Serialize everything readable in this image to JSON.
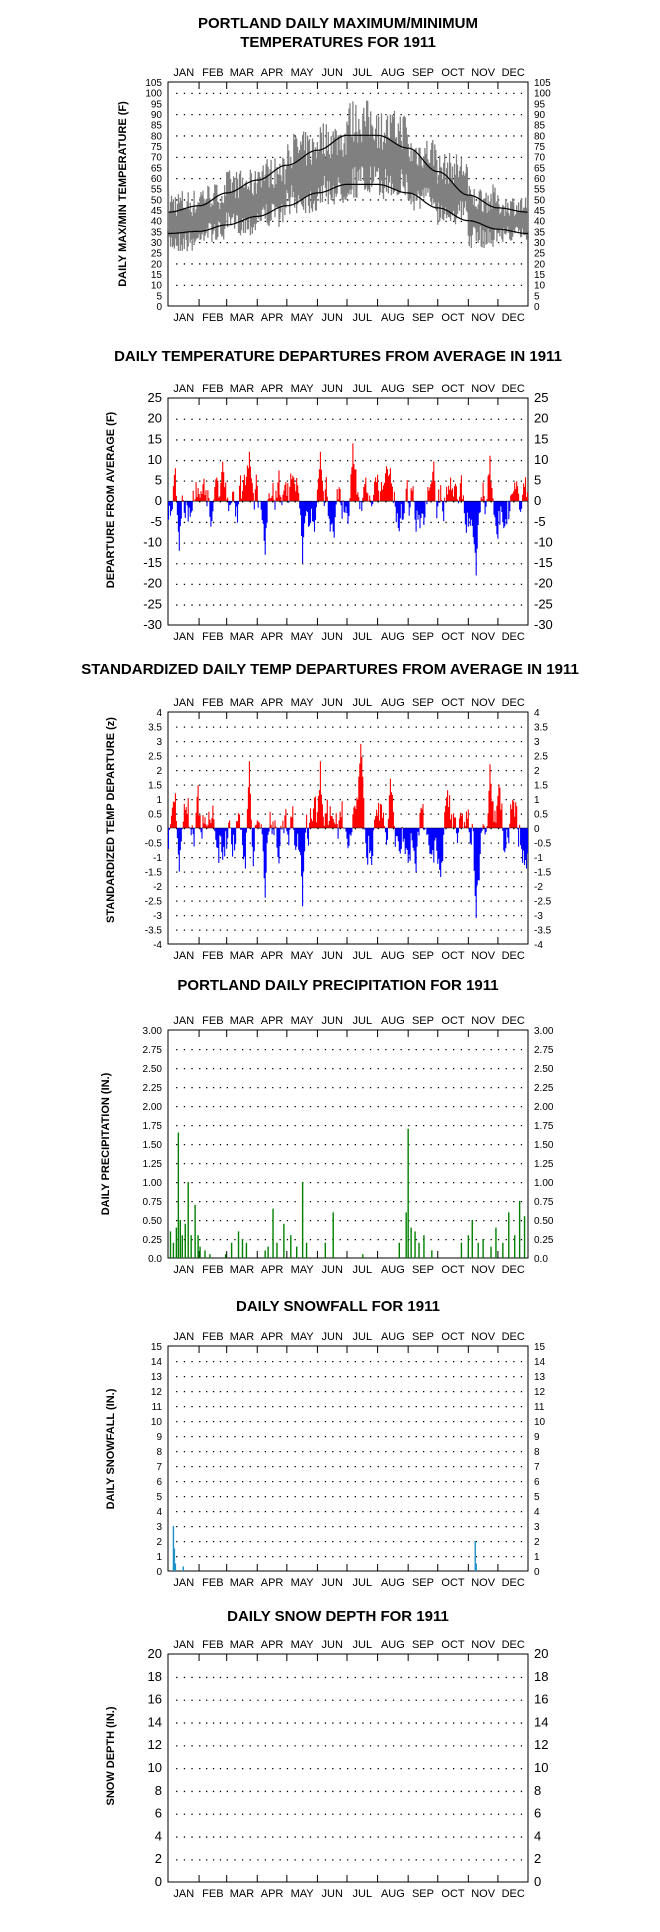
{
  "months": [
    "JAN",
    "FEB",
    "MAR",
    "APR",
    "MAY",
    "JUN",
    "JUL",
    "AUG",
    "SEP",
    "OCT",
    "NOV",
    "DEC"
  ],
  "chart_data": [
    {
      "id": "temps",
      "type": "line",
      "title": [
        "PORTLAND DAILY MAXIMUM/MINIMUM",
        "TEMPERATURES FOR 1911"
      ],
      "ylabel": "DAILY MAX/MIN TEMPERATURE (F)",
      "ylim": [
        0,
        105
      ],
      "yticks": [
        0,
        5,
        10,
        15,
        20,
        25,
        30,
        35,
        40,
        45,
        50,
        55,
        60,
        65,
        70,
        75,
        80,
        85,
        90,
        95,
        100,
        105
      ],
      "grid": true,
      "colors": {
        "observed": "#808080",
        "normals": "#000000"
      },
      "observed_monthly_range": {
        "months": [
          "JAN",
          "FEB",
          "MAR",
          "APR",
          "MAY",
          "JUN",
          "JUL",
          "AUG",
          "SEP",
          "OCT",
          "NOV",
          "DEC"
        ],
        "max": [
          55,
          58,
          64,
          70,
          82,
          87,
          97,
          92,
          80,
          72,
          57,
          52
        ],
        "min": [
          25,
          30,
          33,
          37,
          43,
          47,
          50,
          50,
          44,
          38,
          27,
          30
        ]
      },
      "normal_high": {
        "x": [
          1,
          32,
          60,
          91,
          121,
          152,
          182,
          213,
          244,
          274,
          305,
          335,
          365
        ],
        "y": [
          44,
          47,
          53,
          59,
          66,
          73,
          80,
          80,
          74,
          63,
          52,
          46,
          44
        ]
      },
      "normal_low": {
        "x": [
          1,
          32,
          60,
          91,
          121,
          152,
          182,
          213,
          244,
          274,
          305,
          335,
          365
        ],
        "y": [
          34,
          35,
          38,
          42,
          47,
          53,
          57,
          57,
          53,
          46,
          40,
          36,
          34
        ]
      }
    },
    {
      "id": "departures",
      "type": "bar",
      "title": [
        "DAILY TEMPERATURE DEPARTURES FROM AVERAGE IN 1911"
      ],
      "ylabel": "DEPARTURE FROM AVERAGE (F)",
      "ylim": [
        -30,
        25
      ],
      "yticks": [
        25,
        20,
        15,
        10,
        5,
        0,
        -5,
        -10,
        -15,
        -20,
        -25,
        -30
      ],
      "grid": true,
      "colors": {
        "positive": "#ff0000",
        "negative": "#0000ff"
      },
      "extremes": [
        {
          "day": 8,
          "value": 8
        },
        {
          "day": 12,
          "value": -12
        },
        {
          "day": 83,
          "value": 12
        },
        {
          "day": 99,
          "value": -13
        },
        {
          "day": 137,
          "value": -15
        },
        {
          "day": 155,
          "value": 12
        },
        {
          "day": 188,
          "value": 14
        },
        {
          "day": 226,
          "value": 8
        },
        {
          "day": 313,
          "value": -18
        },
        {
          "day": 327,
          "value": 11
        }
      ]
    },
    {
      "id": "std-departures",
      "type": "bar",
      "title": [
        "STANDARDIZED DAILY TEMP DEPARTURES FROM AVERAGE IN 1911"
      ],
      "ylabel": "STANDARDIZED TEMP DEPARTURE (z)",
      "ylim": [
        -4,
        4
      ],
      "yticks": [
        4.0,
        3.5,
        3.0,
        2.5,
        2.0,
        1.5,
        1.0,
        0.5,
        0.0,
        -0.5,
        -1.0,
        -1.5,
        -2.0,
        -2.5,
        -3.0,
        -3.5,
        -4.0
      ],
      "grid": true,
      "colors": {
        "positive": "#ff0000",
        "negative": "#0000ff"
      },
      "extremes": [
        {
          "day": 8,
          "value": 1.2
        },
        {
          "day": 12,
          "value": -1.5
        },
        {
          "day": 83,
          "value": 2.3
        },
        {
          "day": 99,
          "value": -2.4
        },
        {
          "day": 137,
          "value": -2.7
        },
        {
          "day": 155,
          "value": 2.3
        },
        {
          "day": 196,
          "value": 2.9
        },
        {
          "day": 226,
          "value": 1.7
        },
        {
          "day": 313,
          "value": -3.1
        },
        {
          "day": 327,
          "value": 2.2
        }
      ]
    },
    {
      "id": "precip",
      "type": "bar",
      "title": [
        "PORTLAND DAILY PRECIPITATION FOR 1911"
      ],
      "ylabel": "DAILY PRECIPITATION (IN.)",
      "ylim": [
        0,
        3
      ],
      "yticks": [
        "0.0",
        "0.25",
        "0.50",
        "0.75",
        "1.00",
        "1.25",
        "1.50",
        "1.75",
        "2.00",
        "2.25",
        "2.50",
        "2.75",
        "3.00"
      ],
      "grid": true,
      "color": "#008000",
      "bars": [
        {
          "day": 3,
          "value": 0.35
        },
        {
          "day": 6,
          "value": 0.2
        },
        {
          "day": 9,
          "value": 0.4
        },
        {
          "day": 11,
          "value": 1.65
        },
        {
          "day": 13,
          "value": 0.5
        },
        {
          "day": 15,
          "value": 0.3
        },
        {
          "day": 18,
          "value": 0.45
        },
        {
          "day": 21,
          "value": 1.0
        },
        {
          "day": 24,
          "value": 0.3
        },
        {
          "day": 28,
          "value": 0.7
        },
        {
          "day": 31,
          "value": 0.3
        },
        {
          "day": 33,
          "value": 0.15
        },
        {
          "day": 38,
          "value": 0.1
        },
        {
          "day": 43,
          "value": 0.05
        },
        {
          "day": 59,
          "value": 0.05
        },
        {
          "day": 65,
          "value": 0.2
        },
        {
          "day": 72,
          "value": 0.35
        },
        {
          "day": 76,
          "value": 0.25
        },
        {
          "day": 80,
          "value": 0.2
        },
        {
          "day": 99,
          "value": 0.1
        },
        {
          "day": 102,
          "value": 0.15
        },
        {
          "day": 107,
          "value": 0.65
        },
        {
          "day": 111,
          "value": 0.2
        },
        {
          "day": 118,
          "value": 0.45
        },
        {
          "day": 125,
          "value": 0.3
        },
        {
          "day": 131,
          "value": 0.15
        },
        {
          "day": 137,
          "value": 1.0
        },
        {
          "day": 141,
          "value": 0.2
        },
        {
          "day": 160,
          "value": 0.2
        },
        {
          "day": 168,
          "value": 0.6
        },
        {
          "day": 198,
          "value": 0.05
        },
        {
          "day": 235,
          "value": 0.2
        },
        {
          "day": 242,
          "value": 0.6
        },
        {
          "day": 244,
          "value": 1.7
        },
        {
          "day": 247,
          "value": 0.4
        },
        {
          "day": 251,
          "value": 0.35
        },
        {
          "day": 255,
          "value": 0.2
        },
        {
          "day": 260,
          "value": 0.3
        },
        {
          "day": 268,
          "value": 0.1
        },
        {
          "day": 298,
          "value": 0.2
        },
        {
          "day": 305,
          "value": 0.3
        },
        {
          "day": 309,
          "value": 0.5
        },
        {
          "day": 315,
          "value": 0.2
        },
        {
          "day": 320,
          "value": 0.25
        },
        {
          "day": 328,
          "value": 0.15
        },
        {
          "day": 333,
          "value": 0.4
        },
        {
          "day": 340,
          "value": 0.2
        },
        {
          "day": 346,
          "value": 0.6
        },
        {
          "day": 352,
          "value": 0.3
        },
        {
          "day": 357,
          "value": 0.75
        },
        {
          "day": 362,
          "value": 0.55
        }
      ]
    },
    {
      "id": "snowfall",
      "type": "bar",
      "title": [
        "DAILY SNOWFALL FOR 1911"
      ],
      "ylabel": "DAILY SNOWFALL (IN.)",
      "ylim": [
        0,
        15
      ],
      "yticks": [
        0,
        1,
        2,
        3,
        4,
        5,
        6,
        7,
        8,
        9,
        10,
        11,
        12,
        13,
        14,
        15
      ],
      "grid": true,
      "color": "#1e90c8",
      "bars": [
        {
          "day": 6,
          "value": 3
        },
        {
          "day": 7,
          "value": 1.5
        },
        {
          "day": 8,
          "value": 0.5
        },
        {
          "day": 16,
          "value": 0.3
        },
        {
          "day": 312,
          "value": 2
        },
        {
          "day": 313,
          "value": 0.5
        }
      ]
    },
    {
      "id": "snowdepth",
      "type": "bar",
      "title": [
        "DAILY SNOW DEPTH FOR 1911"
      ],
      "ylabel": "SNOW DEPTH (IN.)",
      "ylim": [
        0,
        20
      ],
      "yticks": [
        0,
        2,
        4,
        6,
        8,
        10,
        12,
        14,
        16,
        18,
        20
      ],
      "grid": true,
      "bars": []
    }
  ]
}
